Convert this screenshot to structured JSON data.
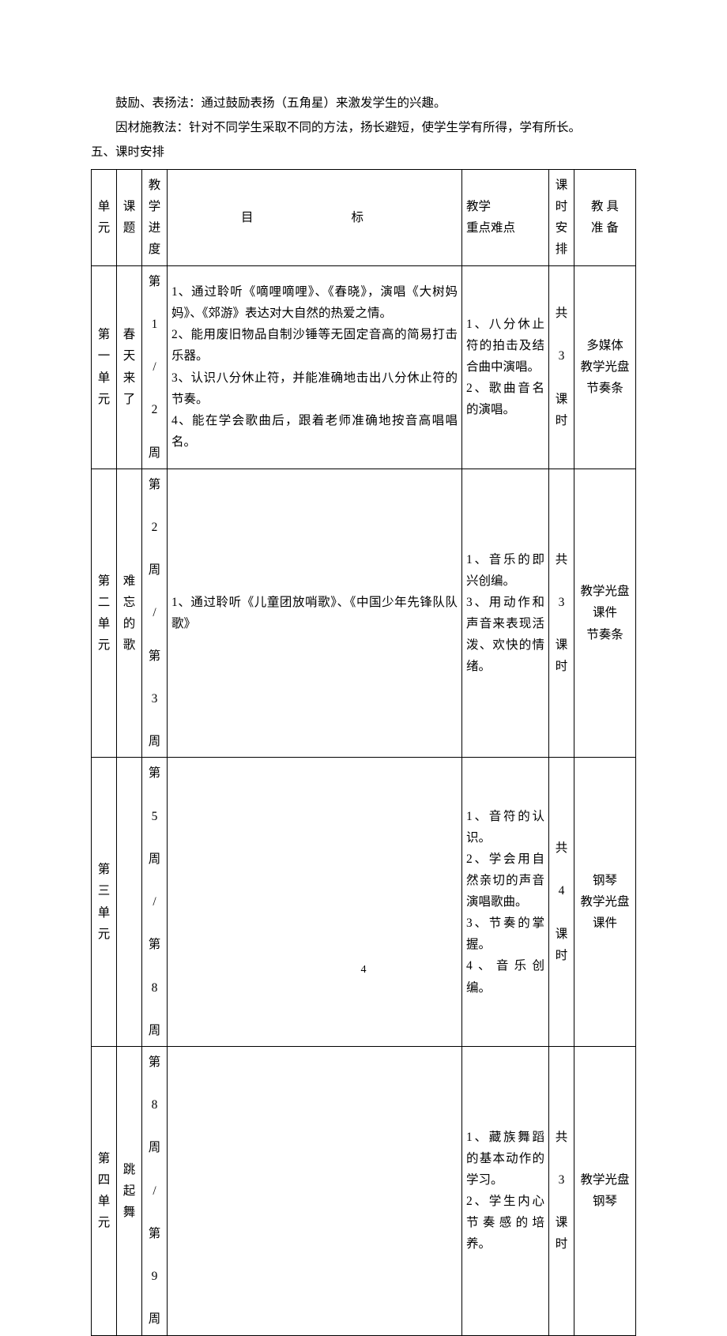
{
  "paragraphs": {
    "p1": "鼓励、表扬法：通过鼓励表扬（五角星）来激发学生的兴趣。",
    "p2": "因材施教法：针对不同学生采取不同的方法，扬长避短，使学生学有所得，学有所长。",
    "section_heading": "五、课时安排"
  },
  "table": {
    "headers": {
      "unit": "单元",
      "topic": "课题",
      "progress": "教学进度",
      "goal": "目　　标",
      "focus_l1": "教学",
      "focus_l2": "重点难点",
      "hours": "课时安排",
      "tools_l1": "教 具",
      "tools_l2": "准 备"
    },
    "rows": [
      {
        "unit": "第一单元",
        "topic": "春天来了",
        "progress": "第 1 / 2 周",
        "goal": "1、通过聆听《嘀哩嘀哩》、《春晓》，演唱《大树妈妈》、《郊游》表达对大自然的热爱之情。\n2、能用废旧物品自制沙锤等无固定音高的简易打击乐器。\n3、认识八分休止符，并能准确地击出八分休止符的节奏。\n4、能在学会歌曲后，跟着老师准确地按音高唱唱名。",
        "focus": "1、八分休止符的拍击及结合曲中演唱。\n2、歌曲音名的演唱。",
        "hours": "共 3 课时",
        "tools": "多媒体\n教学光盘\n节奏条"
      },
      {
        "unit": "第二单元",
        "topic": "难忘的歌",
        "progress": "第 2 周 / 第 3 周",
        "goal": "1、通过聆听《儿童团放哨歌》、《中国少年先锋队队歌》",
        "focus": "1、音乐的即兴创编。\n3、用动作和声音来表现活泼、欢快的情绪。",
        "hours": "共 3 课时",
        "tools": "教学光盘\n课件\n节奏条"
      },
      {
        "unit": "第三单元",
        "topic": "",
        "progress": "第 5 周 / 第 8 周",
        "goal": "",
        "focus": "1、音符的认识。\n2、学会用自然亲切的声音演唱歌曲。\n3、节奏的掌握。\n4、音乐创编。",
        "hours": "共 4 课时",
        "tools": "钢琴\n教学光盘\n课件"
      },
      {
        "unit": "第四单元",
        "topic": "跳起舞",
        "progress": "第 8 周 / 第 9 周",
        "goal": "",
        "focus": "1、藏族舞蹈的基本动作的学习。\n2、学生内心节奏感的培养。",
        "hours": "共 3 课时",
        "tools": "教学光盘\n钢琴"
      }
    ]
  },
  "page_number": "4"
}
